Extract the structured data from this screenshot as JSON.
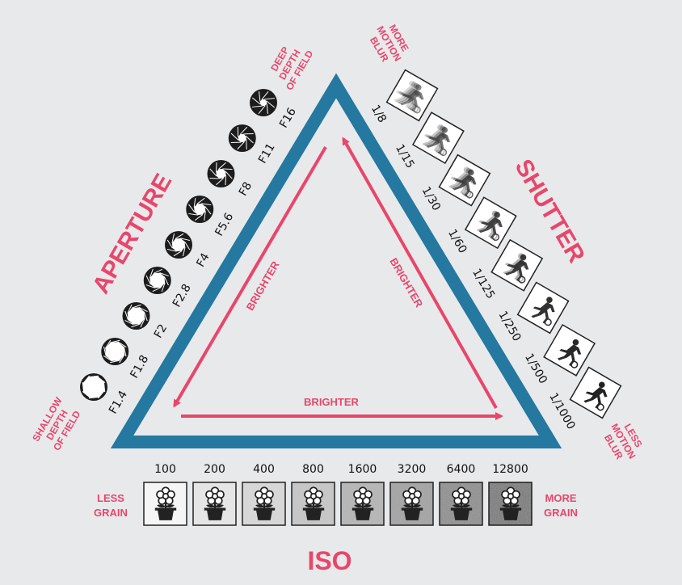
{
  "colors": {
    "accent": "#e8466b",
    "triangle": "#2578a0",
    "background": "#e8e9eb",
    "text": "#111111"
  },
  "aperture": {
    "title": "APERTURE",
    "start_label": [
      "SHALLOW",
      "DEPTH",
      "OF FIELD"
    ],
    "end_label": [
      "DEEP",
      "DEPTH",
      "OF FIELD"
    ],
    "stops": [
      {
        "label": "F1.4",
        "openness": 1.0
      },
      {
        "label": "F1.8",
        "openness": 0.86
      },
      {
        "label": "F2",
        "openness": 0.74
      },
      {
        "label": "F2.8",
        "openness": 0.62
      },
      {
        "label": "F4",
        "openness": 0.5
      },
      {
        "label": "F5.6",
        "openness": 0.4
      },
      {
        "label": "F8",
        "openness": 0.3
      },
      {
        "label": "F11",
        "openness": 0.21
      },
      {
        "label": "F16",
        "openness": 0.12
      }
    ]
  },
  "shutter": {
    "title": "SHUTTER",
    "start_label": [
      "MORE",
      "MOTION",
      "BLUR"
    ],
    "end_label": [
      "LESS",
      "MOTION",
      "BLUR"
    ],
    "speeds": [
      "1/8",
      "1/15",
      "1/30",
      "1/60",
      "1/125",
      "1/250",
      "1/500",
      "1/1000"
    ],
    "blur_levels": [
      1.0,
      0.8,
      0.6,
      0.42,
      0.28,
      0.16,
      0.06,
      0.0
    ]
  },
  "iso": {
    "title": "ISO",
    "start_label": [
      "LESS",
      "GRAIN"
    ],
    "end_label": [
      "MORE",
      "GRAIN"
    ],
    "values": [
      "100",
      "200",
      "400",
      "800",
      "1600",
      "3200",
      "6400",
      "12800"
    ],
    "grain_levels": [
      0.0,
      0.1,
      0.2,
      0.32,
      0.45,
      0.6,
      0.78,
      1.0
    ]
  },
  "arrows": {
    "left": "BRIGHTER",
    "right": "BRIGHTER",
    "bottom": "BRIGHTER"
  },
  "icons": {
    "aperture": "aperture-blades-icon",
    "shutter": "running-person-icon",
    "iso": "flower-pot-icon"
  }
}
